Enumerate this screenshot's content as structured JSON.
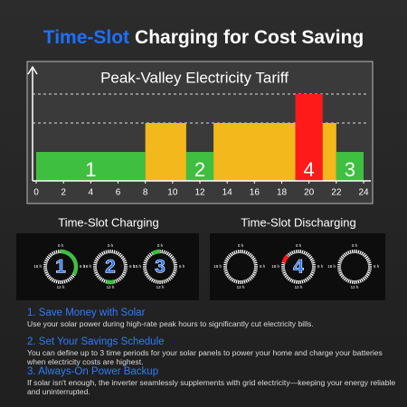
{
  "header": {
    "title_highlight": "Time-Slot",
    "title_rest": "Charging for Cost Saving"
  },
  "tariff_chart": {
    "title": "Peak-Valley Electricity Tariff",
    "xlim": [
      0,
      24
    ],
    "xticks": [
      0,
      2,
      4,
      6,
      8,
      10,
      12,
      14,
      16,
      18,
      20,
      22,
      24
    ],
    "segments": [
      {
        "start": 0,
        "end": 8,
        "level": 1,
        "color": "#3fbf3f",
        "label": "1"
      },
      {
        "start": 8,
        "end": 11,
        "level": 2,
        "color": "#f2b81c",
        "label": null
      },
      {
        "start": 11,
        "end": 13,
        "level": 1,
        "color": "#3fbf3f",
        "label": "2"
      },
      {
        "start": 13,
        "end": 19,
        "level": 2,
        "color": "#f2b81c",
        "label": null
      },
      {
        "start": 19,
        "end": 21,
        "level": 3,
        "color": "#ff1a1a",
        "label": "4"
      },
      {
        "start": 21,
        "end": 22,
        "level": 2,
        "color": "#f2b81c",
        "label": null
      },
      {
        "start": 22,
        "end": 24,
        "level": 1,
        "color": "#3fbf3f",
        "label": "3"
      }
    ]
  },
  "clocks": {
    "hour_labels": [
      "0 h",
      "6 h",
      "12 h",
      "18 h"
    ],
    "charging": {
      "title": "Time-Slot Charging",
      "items": [
        {
          "label": "1",
          "start": 0,
          "end": 8,
          "color": "#3fbf3f"
        },
        {
          "label": "2",
          "start": 11,
          "end": 13,
          "color": "#3fbf3f"
        },
        {
          "label": "3",
          "start": 22,
          "end": 24,
          "color": "#3fbf3f"
        }
      ]
    },
    "discharging": {
      "title": "Time-Slot Discharging",
      "items": [
        {
          "label": null,
          "start": null,
          "end": null,
          "color": null
        },
        {
          "label": "4",
          "start": 19,
          "end": 21,
          "color": "#ff1a1a"
        },
        {
          "label": null,
          "start": null,
          "end": null,
          "color": null
        }
      ]
    }
  },
  "sections": [
    {
      "heading": "1. Save Money with Solar",
      "body": "Use your solar power during high-rate peak hours to significantly cut electricity bills."
    },
    {
      "heading": "2. Set Your Savings Schedule",
      "body": "You can define up to 3 time periods for your solar panels to power your home and charge your batteries when electricity costs are highest."
    },
    {
      "heading": "3. Always-On Power Backup",
      "body": "If solar isn't enough, the inverter seamlessly supplements with grid electricity—keeping your energy reliable and uninterrupted."
    }
  ]
}
